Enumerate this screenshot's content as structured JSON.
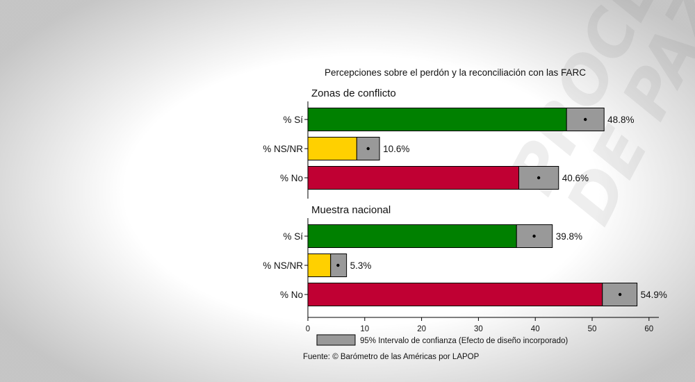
{
  "chart_data": {
    "type": "bar",
    "title": "Percepciones sobre el perdón y la reconciliación con las FARC",
    "xlim": [
      0,
      60
    ],
    "x_ticks": [
      "0",
      "10",
      "20",
      "30",
      "40",
      "50",
      "60"
    ],
    "panels": [
      {
        "name": "Zonas de conflicto",
        "categories": [
          "% Sí",
          "% NS/NR",
          "% No"
        ],
        "values": [
          48.8,
          10.6,
          40.6
        ],
        "value_labels": [
          "48.8%",
          "10.6%",
          "40.6%"
        ],
        "ci": [
          [
            45.5,
            52.1
          ],
          [
            8.6,
            12.6
          ],
          [
            37.1,
            44.1
          ]
        ]
      },
      {
        "name": "Muestra nacional",
        "categories": [
          "% Sí",
          "% NS/NR",
          "% No"
        ],
        "values": [
          39.8,
          5.3,
          54.9
        ],
        "value_labels": [
          "39.8%",
          "5.3%",
          "54.9%"
        ],
        "ci": [
          [
            36.7,
            43.0
          ],
          [
            4.0,
            6.8
          ],
          [
            51.8,
            57.9
          ]
        ]
      }
    ],
    "colors": [
      "#008000",
      "#ffd000",
      "#c00033"
    ],
    "ci_color": "#999999",
    "legend": "95% Intervalo de confianza (Efecto de diseño incorporado)",
    "legend_position": "bottom",
    "source": "Fuente: © Barómetro de las Américas por LAPOP"
  },
  "watermark": {
    "line1": "PROCES",
    "line2": "DE PAZ"
  }
}
